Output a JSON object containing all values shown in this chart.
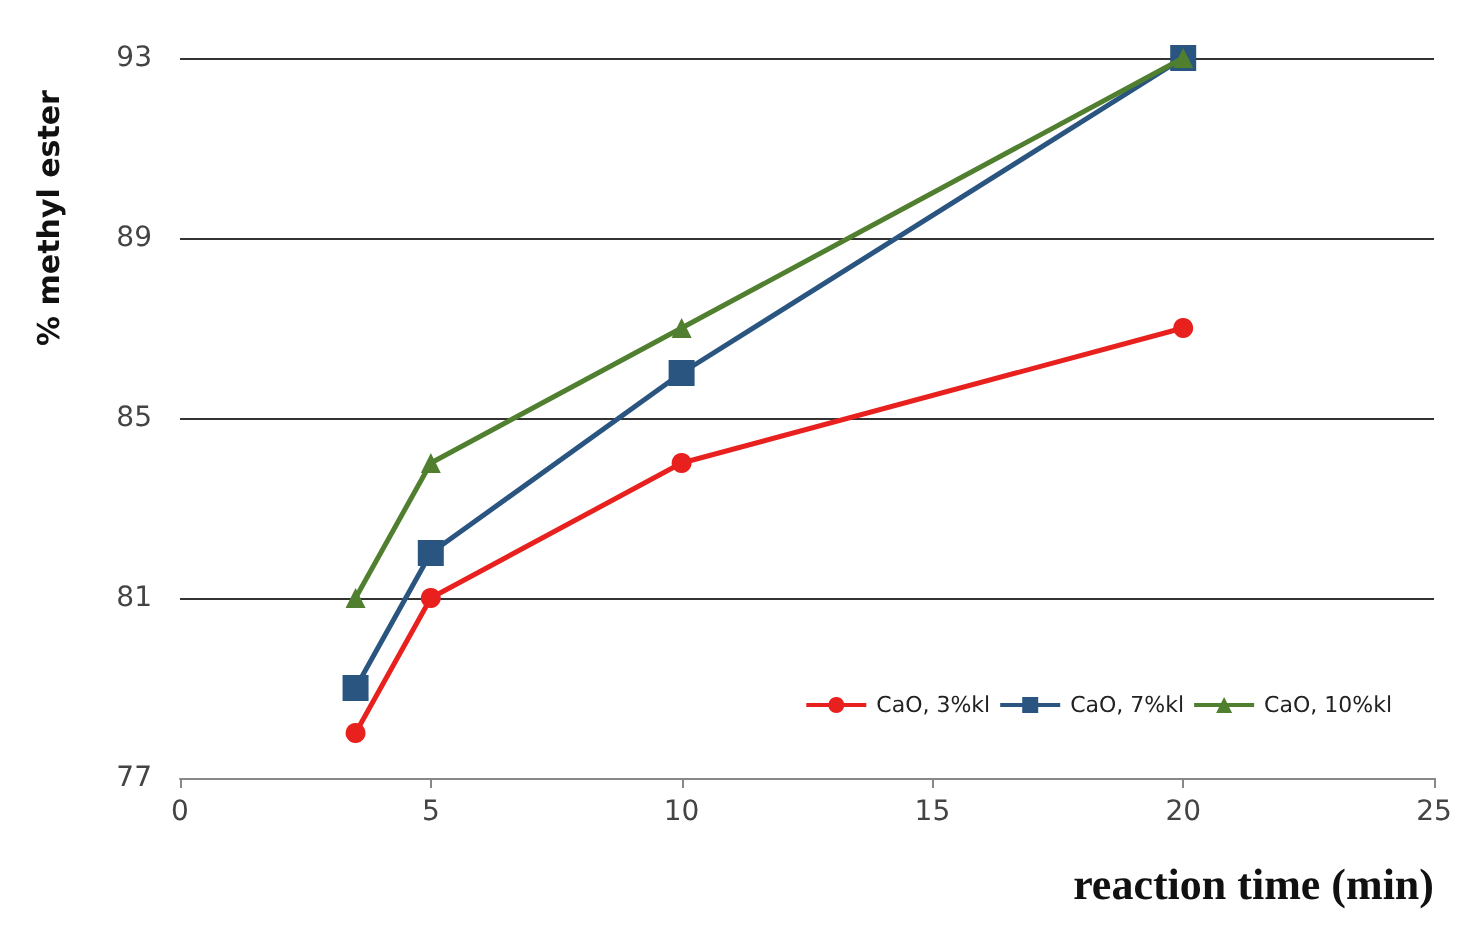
{
  "chart_data": {
    "type": "line",
    "xlabel": "reaction time (min)",
    "ylabel": "% methyl ester",
    "x": [
      3.5,
      5,
      10,
      20
    ],
    "series": [
      {
        "name": "CaO, 3%kl",
        "color": "#e8211f",
        "marker": "circle",
        "values": [
          78,
          81,
          84,
          87
        ]
      },
      {
        "name": "CaO, 7%kl",
        "color": "#2a5580",
        "marker": "square",
        "values": [
          79,
          82,
          86,
          93
        ]
      },
      {
        "name": "CaO, 10%kl",
        "color": "#4f7f2f",
        "marker": "triangle",
        "values": [
          81,
          84,
          87,
          93
        ]
      }
    ],
    "xlim": [
      0,
      25
    ],
    "xticks": [
      0,
      5,
      10,
      15,
      20,
      25
    ],
    "ylim": [
      77,
      93
    ],
    "yticks": [
      77,
      81,
      85,
      89,
      93
    ],
    "grid": "y",
    "legend": "bottom right",
    "line_style": "solid"
  }
}
